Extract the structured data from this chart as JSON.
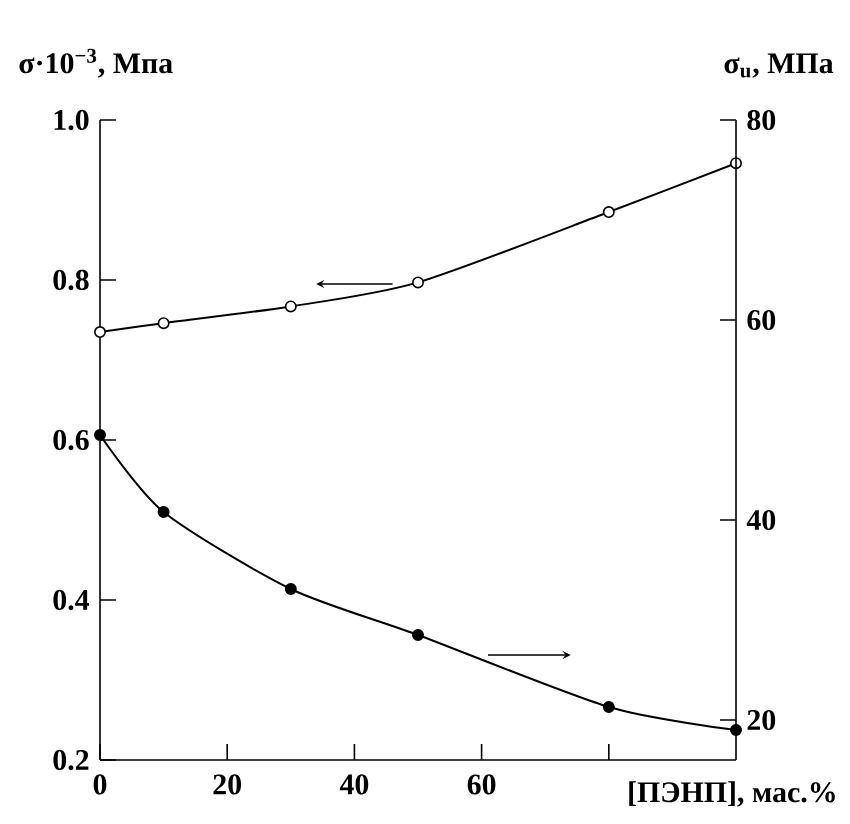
{
  "chart_data": {
    "type": "line",
    "xlabel": "[ПЭНП], мас.%",
    "ylabel": "σ·10$^{−3}$, Мпа",
    "y2label": "σ$_{u}$, МПа",
    "x": [
      0,
      10,
      30,
      50,
      80,
      100
    ],
    "xlim": [
      0,
      100
    ],
    "xticks": [
      0,
      20,
      40,
      60,
      {
        "value": 80,
        "label": null
      }
    ],
    "ylim": [
      0.2,
      1.0
    ],
    "yticks": [
      0.2,
      0.4,
      0.6,
      0.8,
      {
        "value": 1.0,
        "label": "1.0"
      }
    ],
    "y2lim": [
      16,
      80
    ],
    "y2ticks": [
      20,
      40,
      60,
      80
    ],
    "marker": "circle",
    "line_style": "solid",
    "series": [
      {
        "color": "#000000",
        "axis": "y",
        "values": [
          0.735,
          0.746,
          0.767,
          0.797,
          0.885,
          0.946
        ]
      },
      {
        "color": "#000000",
        "axis": "y2",
        "values": [
          48.5,
          40.8,
          33.1,
          28.5,
          21.3,
          19.0
        ]
      }
    ]
  }
}
